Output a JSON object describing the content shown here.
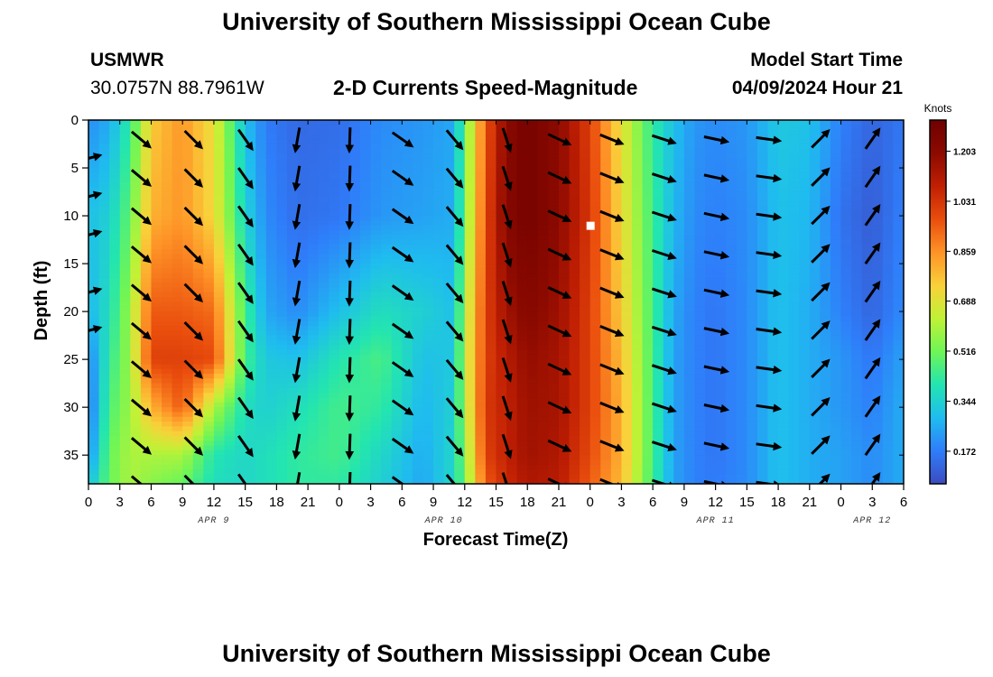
{
  "header": {
    "title": "University of Southern Mississippi Ocean Cube",
    "station_name": "USMWR",
    "station_coords": "30.0757N  88.7961W",
    "plot_title": "2-D Currents Speed-Magnitude",
    "model_start_label": "Model Start Time",
    "model_start_time": "04/09/2024 Hour 21"
  },
  "footer": {
    "title": "University of Southern Mississippi Ocean Cube"
  },
  "chart_data": {
    "type": "heatmap",
    "xlabel": "Forecast Time(Z)",
    "ylabel": "Depth (ft)",
    "x_hours_range": [
      0,
      78
    ],
    "y_range": [
      0,
      38
    ],
    "x_tick_labels": [
      "0",
      "3",
      "6",
      "9",
      "12",
      "15",
      "18",
      "21",
      "0",
      "3",
      "6",
      "9",
      "12",
      "15",
      "18",
      "21",
      "0",
      "3",
      "6",
      "9",
      "12",
      "15",
      "18",
      "21",
      "0",
      "3",
      "6"
    ],
    "y_ticks": [
      0,
      5,
      10,
      15,
      20,
      25,
      30,
      35
    ],
    "date_labels": [
      {
        "text": "APR 9",
        "hour": 12
      },
      {
        "text": "APR 10",
        "hour": 34
      },
      {
        "text": "APR 11",
        "hour": 60
      },
      {
        "text": "APR 12",
        "hour": 75
      }
    ],
    "colorbar": {
      "title": "Knots",
      "range": [
        0.06,
        1.31
      ],
      "ticks": [
        0.172,
        0.344,
        0.516,
        0.688,
        0.859,
        1.031,
        1.203
      ],
      "tick_labels": [
        "0.172",
        "0.344",
        "0.516",
        "0.688",
        "0.859",
        "1.031",
        "1.203"
      ]
    },
    "colormap": [
      "#3b4cc0",
      "#2f7dfa",
      "#1fbcef",
      "#23e5b0",
      "#6ff556",
      "#c0f236",
      "#f9d13a",
      "#fe9327",
      "#ea4e0d",
      "#c01f03",
      "#8c0a00",
      "#6f0000"
    ],
    "speed_columns_hours": [
      0,
      2,
      4,
      6,
      9,
      12,
      15,
      17,
      20,
      24,
      28,
      32,
      35,
      36,
      38,
      40,
      42,
      45,
      48,
      51,
      54,
      56,
      58,
      60,
      63,
      66,
      69,
      72,
      75,
      78
    ],
    "speed_rows_depth": [
      0,
      10,
      20,
      25,
      30,
      35,
      38
    ],
    "speed_grid": [
      [
        0.2,
        0.3,
        0.28,
        0.18,
        0.15,
        0.2,
        0.3
      ],
      [
        0.26,
        0.34,
        0.38,
        0.42,
        0.46,
        0.5,
        0.5
      ],
      [
        0.42,
        0.5,
        0.58,
        0.58,
        0.58,
        0.6,
        0.6
      ],
      [
        0.75,
        0.8,
        0.95,
        1.0,
        0.8,
        0.6,
        0.55
      ],
      [
        0.85,
        0.85,
        0.95,
        1.0,
        0.95,
        0.6,
        0.5
      ],
      [
        0.7,
        0.72,
        0.92,
        0.98,
        0.6,
        0.4,
        0.38
      ],
      [
        0.3,
        0.35,
        0.45,
        0.45,
        0.38,
        0.36,
        0.36
      ],
      [
        0.17,
        0.2,
        0.25,
        0.32,
        0.34,
        0.38,
        0.38
      ],
      [
        0.13,
        0.14,
        0.2,
        0.3,
        0.38,
        0.42,
        0.42
      ],
      [
        0.14,
        0.16,
        0.3,
        0.4,
        0.45,
        0.45,
        0.42
      ],
      [
        0.2,
        0.22,
        0.38,
        0.46,
        0.42,
        0.36,
        0.34
      ],
      [
        0.22,
        0.24,
        0.34,
        0.3,
        0.28,
        0.26,
        0.25
      ],
      [
        0.25,
        0.26,
        0.3,
        0.32,
        0.34,
        0.36,
        0.36
      ],
      [
        0.5,
        0.52,
        0.6,
        0.62,
        0.6,
        0.55,
        0.52
      ],
      [
        0.95,
        0.98,
        1.0,
        1.0,
        1.02,
        1.0,
        0.95
      ],
      [
        1.2,
        1.22,
        1.15,
        1.1,
        1.08,
        1.08,
        1.05
      ],
      [
        1.28,
        1.28,
        1.22,
        1.18,
        1.16,
        1.15,
        1.12
      ],
      [
        1.2,
        1.2,
        1.16,
        1.14,
        1.14,
        1.12,
        1.1
      ],
      [
        1.0,
        1.02,
        1.0,
        1.0,
        1.0,
        0.98,
        0.95
      ],
      [
        0.7,
        0.72,
        0.75,
        0.78,
        0.8,
        0.8,
        0.78
      ],
      [
        0.42,
        0.44,
        0.45,
        0.45,
        0.45,
        0.45,
        0.44
      ],
      [
        0.3,
        0.28,
        0.25,
        0.24,
        0.24,
        0.24,
        0.24
      ],
      [
        0.22,
        0.2,
        0.18,
        0.18,
        0.18,
        0.18,
        0.18
      ],
      [
        0.2,
        0.18,
        0.16,
        0.16,
        0.16,
        0.16,
        0.17
      ],
      [
        0.22,
        0.2,
        0.2,
        0.2,
        0.2,
        0.2,
        0.2
      ],
      [
        0.32,
        0.3,
        0.3,
        0.3,
        0.3,
        0.3,
        0.3
      ],
      [
        0.3,
        0.28,
        0.26,
        0.26,
        0.26,
        0.26,
        0.26
      ],
      [
        0.18,
        0.15,
        0.18,
        0.22,
        0.22,
        0.24,
        0.24
      ],
      [
        0.12,
        0.1,
        0.12,
        0.16,
        0.18,
        0.2,
        0.2
      ],
      [
        0.16,
        0.18,
        0.2,
        0.24,
        0.26,
        0.26,
        0.26
      ]
    ],
    "vector_hours": [
      0,
      5,
      10,
      15,
      20,
      25,
      30,
      35,
      40,
      45,
      50,
      55,
      60,
      65,
      70,
      75
    ],
    "vector_depths": [
      2,
      6,
      10,
      14,
      18,
      22,
      26,
      30,
      34,
      38
    ],
    "vector_columns": [
      {
        "hour": 0,
        "angle_deg": -15,
        "depths": [
          4,
          8,
          12,
          18,
          22
        ]
      },
      {
        "hour": 5,
        "angle_deg": 40
      },
      {
        "hour": 10,
        "angle_deg": 45
      },
      {
        "hour": 15,
        "angle_deg": 55
      },
      {
        "hour": 20,
        "angle_deg": 100
      },
      {
        "hour": 25,
        "angle_deg": 92
      },
      {
        "hour": 30,
        "angle_deg": 35
      },
      {
        "hour": 35,
        "angle_deg": 50
      },
      {
        "hour": 40,
        "angle_deg": 72
      },
      {
        "hour": 45,
        "angle_deg": 25
      },
      {
        "hour": 50,
        "angle_deg": 22
      },
      {
        "hour": 55,
        "angle_deg": 18
      },
      {
        "hour": 60,
        "angle_deg": 12
      },
      {
        "hour": 65,
        "angle_deg": 8
      },
      {
        "hour": 70,
        "angle_deg": -45
      },
      {
        "hour": 75,
        "angle_deg": -55
      }
    ],
    "marker": {
      "hour": 48,
      "depth": 11
    }
  }
}
